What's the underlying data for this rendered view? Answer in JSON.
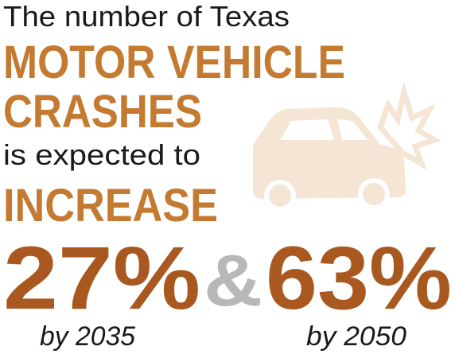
{
  "lines": [
    "The number of Texas",
    "MOTOR VEHICLE",
    "CRASHES",
    "is expected to",
    "INCREASE"
  ],
  "figures": [
    {
      "value": "27%",
      "label": "by 2035"
    },
    {
      "value": "63%",
      "label": "by 2050"
    }
  ],
  "connector": "&"
}
